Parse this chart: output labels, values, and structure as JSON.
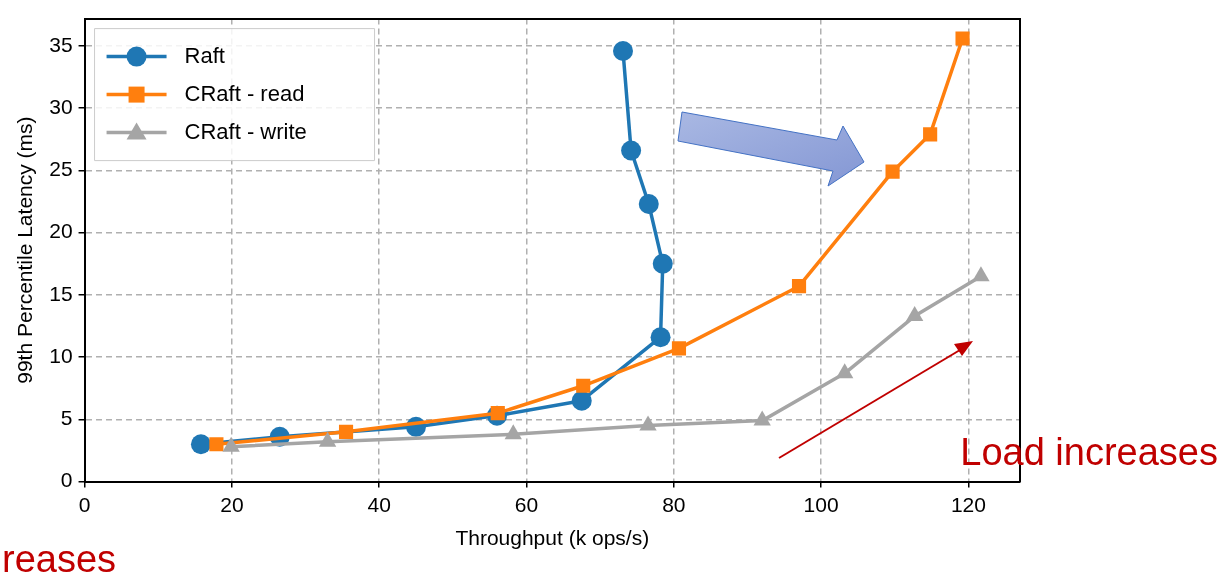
{
  "chart_data": {
    "type": "line",
    "xlabel": "Throughput (k ops/s)",
    "ylabel": "99th Percentile Latency (ms)",
    "xlim": [
      0,
      127
    ],
    "xticks": [
      0,
      20,
      40,
      60,
      80,
      100,
      120
    ],
    "ylim": [
      0,
      37.2
    ],
    "yticks": [
      0,
      5,
      10,
      15,
      20,
      25,
      30,
      35
    ],
    "grid": true,
    "legend": "top left",
    "line_style": "solid",
    "series": [
      {
        "name": "Raft",
        "color": "#1f77b4",
        "marker": "circle",
        "x": [
          15.8,
          26.5,
          45,
          56,
          67.5,
          78.2,
          78.5,
          76.6,
          74.2,
          73.1
        ],
        "values": [
          3.0,
          3.6,
          4.4,
          5.3,
          6.5,
          11.6,
          17.5,
          22.3,
          26.6,
          34.6
        ]
      },
      {
        "name": "CRaft - read",
        "color": "#ff7f0e",
        "marker": "square",
        "x": [
          17.9,
          35.5,
          56.1,
          67.7,
          80.7,
          97,
          109.7,
          114.8,
          119.2
        ],
        "values": [
          3.0,
          4.0,
          5.5,
          7.7,
          10.7,
          15.7,
          24.9,
          27.9,
          35.6
        ]
      },
      {
        "name": "CRaft - write",
        "color": "#a5a5a5",
        "marker": "triangle",
        "x": [
          19.9,
          33,
          58.2,
          76.5,
          92,
          103.2,
          112.7,
          121.7
        ],
        "values": [
          2.8,
          3.2,
          3.8,
          4.5,
          4.9,
          8.7,
          13.3,
          16.5
        ]
      }
    ],
    "annotations": [
      "Load increases",
      "reases"
    ]
  }
}
